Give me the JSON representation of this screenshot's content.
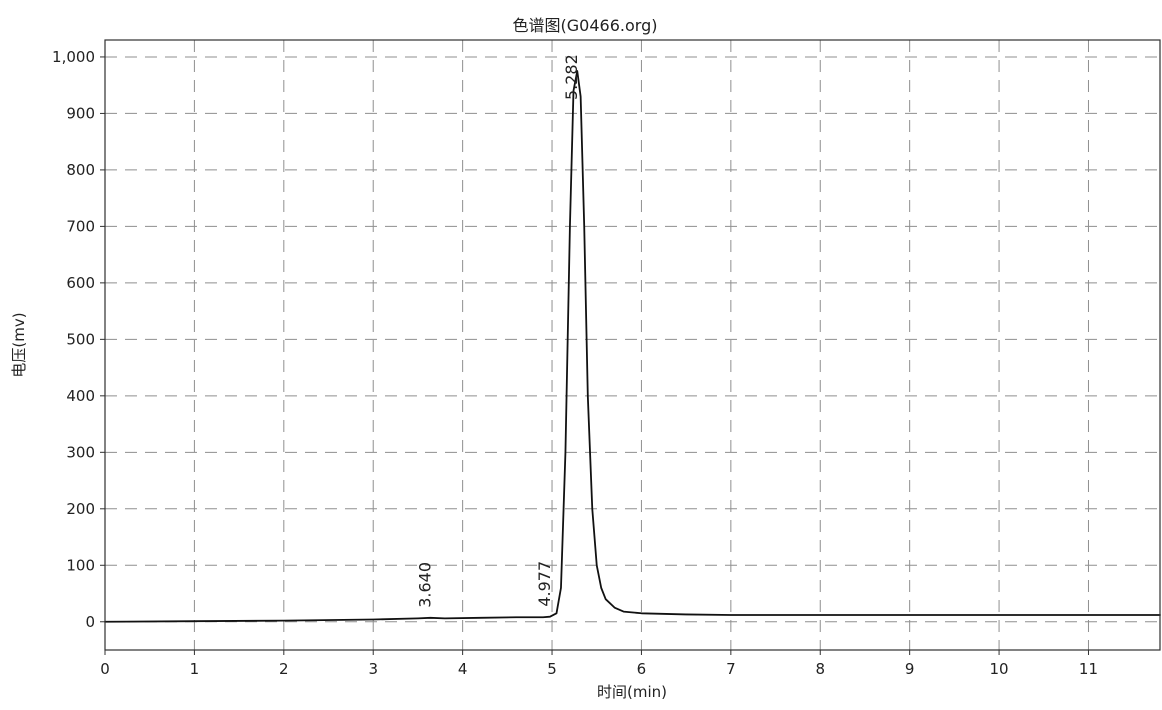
{
  "chart_data": {
    "type": "line",
    "title": "色谱图(G0466.org)",
    "xlabel": "时间(min)",
    "ylabel": "电压(mv)",
    "xlim": [
      0,
      11.8
    ],
    "ylim": [
      -50,
      1030
    ],
    "grid": true,
    "x_ticks": [
      0,
      1,
      2,
      3,
      4,
      5,
      6,
      7,
      8,
      9,
      10,
      11
    ],
    "y_ticks": [
      0,
      100,
      200,
      300,
      400,
      500,
      600,
      700,
      800,
      900,
      1000
    ],
    "x_tick_labels": [
      "0",
      "1",
      "2",
      "3",
      "4",
      "5",
      "6",
      "7",
      "8",
      "9",
      "10",
      "11"
    ],
    "y_tick_labels": [
      "0",
      "100",
      "200",
      "300",
      "400",
      "500",
      "600",
      "700",
      "800",
      "900",
      "1,000"
    ],
    "series": [
      {
        "x": [
          0.0,
          1.0,
          2.0,
          3.0,
          3.5,
          3.64,
          3.8,
          4.2,
          4.6,
          4.9,
          4.977,
          5.05,
          5.1,
          5.15,
          5.2,
          5.24,
          5.282,
          5.32,
          5.36,
          5.4,
          5.45,
          5.5,
          5.55,
          5.6,
          5.7,
          5.8,
          6.0,
          6.5,
          7.0,
          8.0,
          9.0,
          10.0,
          11.0,
          11.8
        ],
        "values": [
          0,
          1,
          2,
          4,
          6,
          7,
          6,
          7,
          8,
          8,
          9,
          15,
          60,
          300,
          700,
          940,
          975,
          930,
          700,
          400,
          200,
          100,
          60,
          40,
          25,
          18,
          15,
          13,
          12,
          12,
          12,
          12,
          12,
          12
        ]
      }
    ],
    "peaks": [
      {
        "x": 3.64,
        "label": "3.640"
      },
      {
        "x": 4.977,
        "label": "4.977"
      },
      {
        "x": 5.282,
        "label": "5.282"
      }
    ]
  }
}
